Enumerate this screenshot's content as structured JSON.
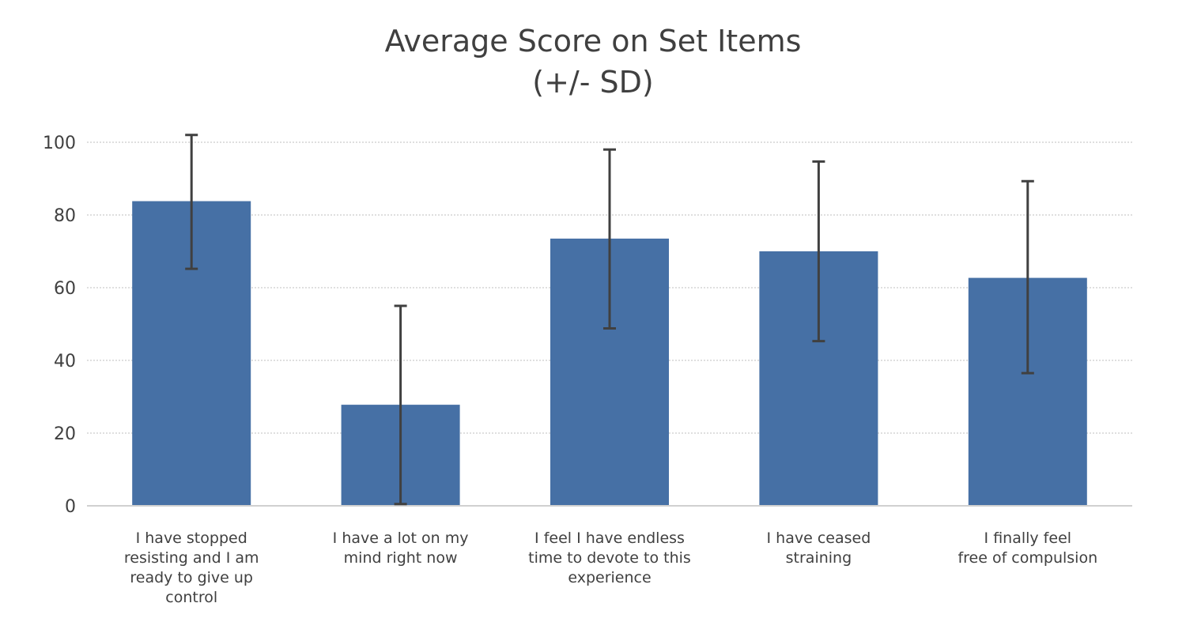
{
  "chart_data": {
    "type": "bar",
    "title": "Average Score on Set Items",
    "subtitle": "(+/- SD)",
    "categories": [
      [
        "I have stopped",
        "resisting and I am",
        "ready to give up",
        "control"
      ],
      [
        "I have a lot on my",
        "mind right now"
      ],
      [
        "I feel I have endless",
        "time to devote to this",
        "experience"
      ],
      [
        "I have ceased",
        "straining"
      ],
      [
        "I finally feel",
        "free of compulsion"
      ]
    ],
    "series": [
      {
        "values": [
          83.8,
          27.8,
          73.5,
          70.0,
          62.7
        ]
      }
    ],
    "error_bars": {
      "lower": [
        65.2,
        0.5,
        48.8,
        45.3,
        36.5
      ],
      "upper": [
        102.0,
        55.0,
        98.0,
        94.7,
        89.3
      ]
    },
    "yticks": [
      "0",
      "20",
      "40",
      "60",
      "80",
      "100"
    ],
    "ylim": [
      0,
      100
    ],
    "grid": true,
    "colors": {
      "bar": "#4670A5",
      "error": "#404040",
      "grid": "#BFBFBF",
      "axis": "#D0D0D0",
      "text": "#404040"
    }
  }
}
